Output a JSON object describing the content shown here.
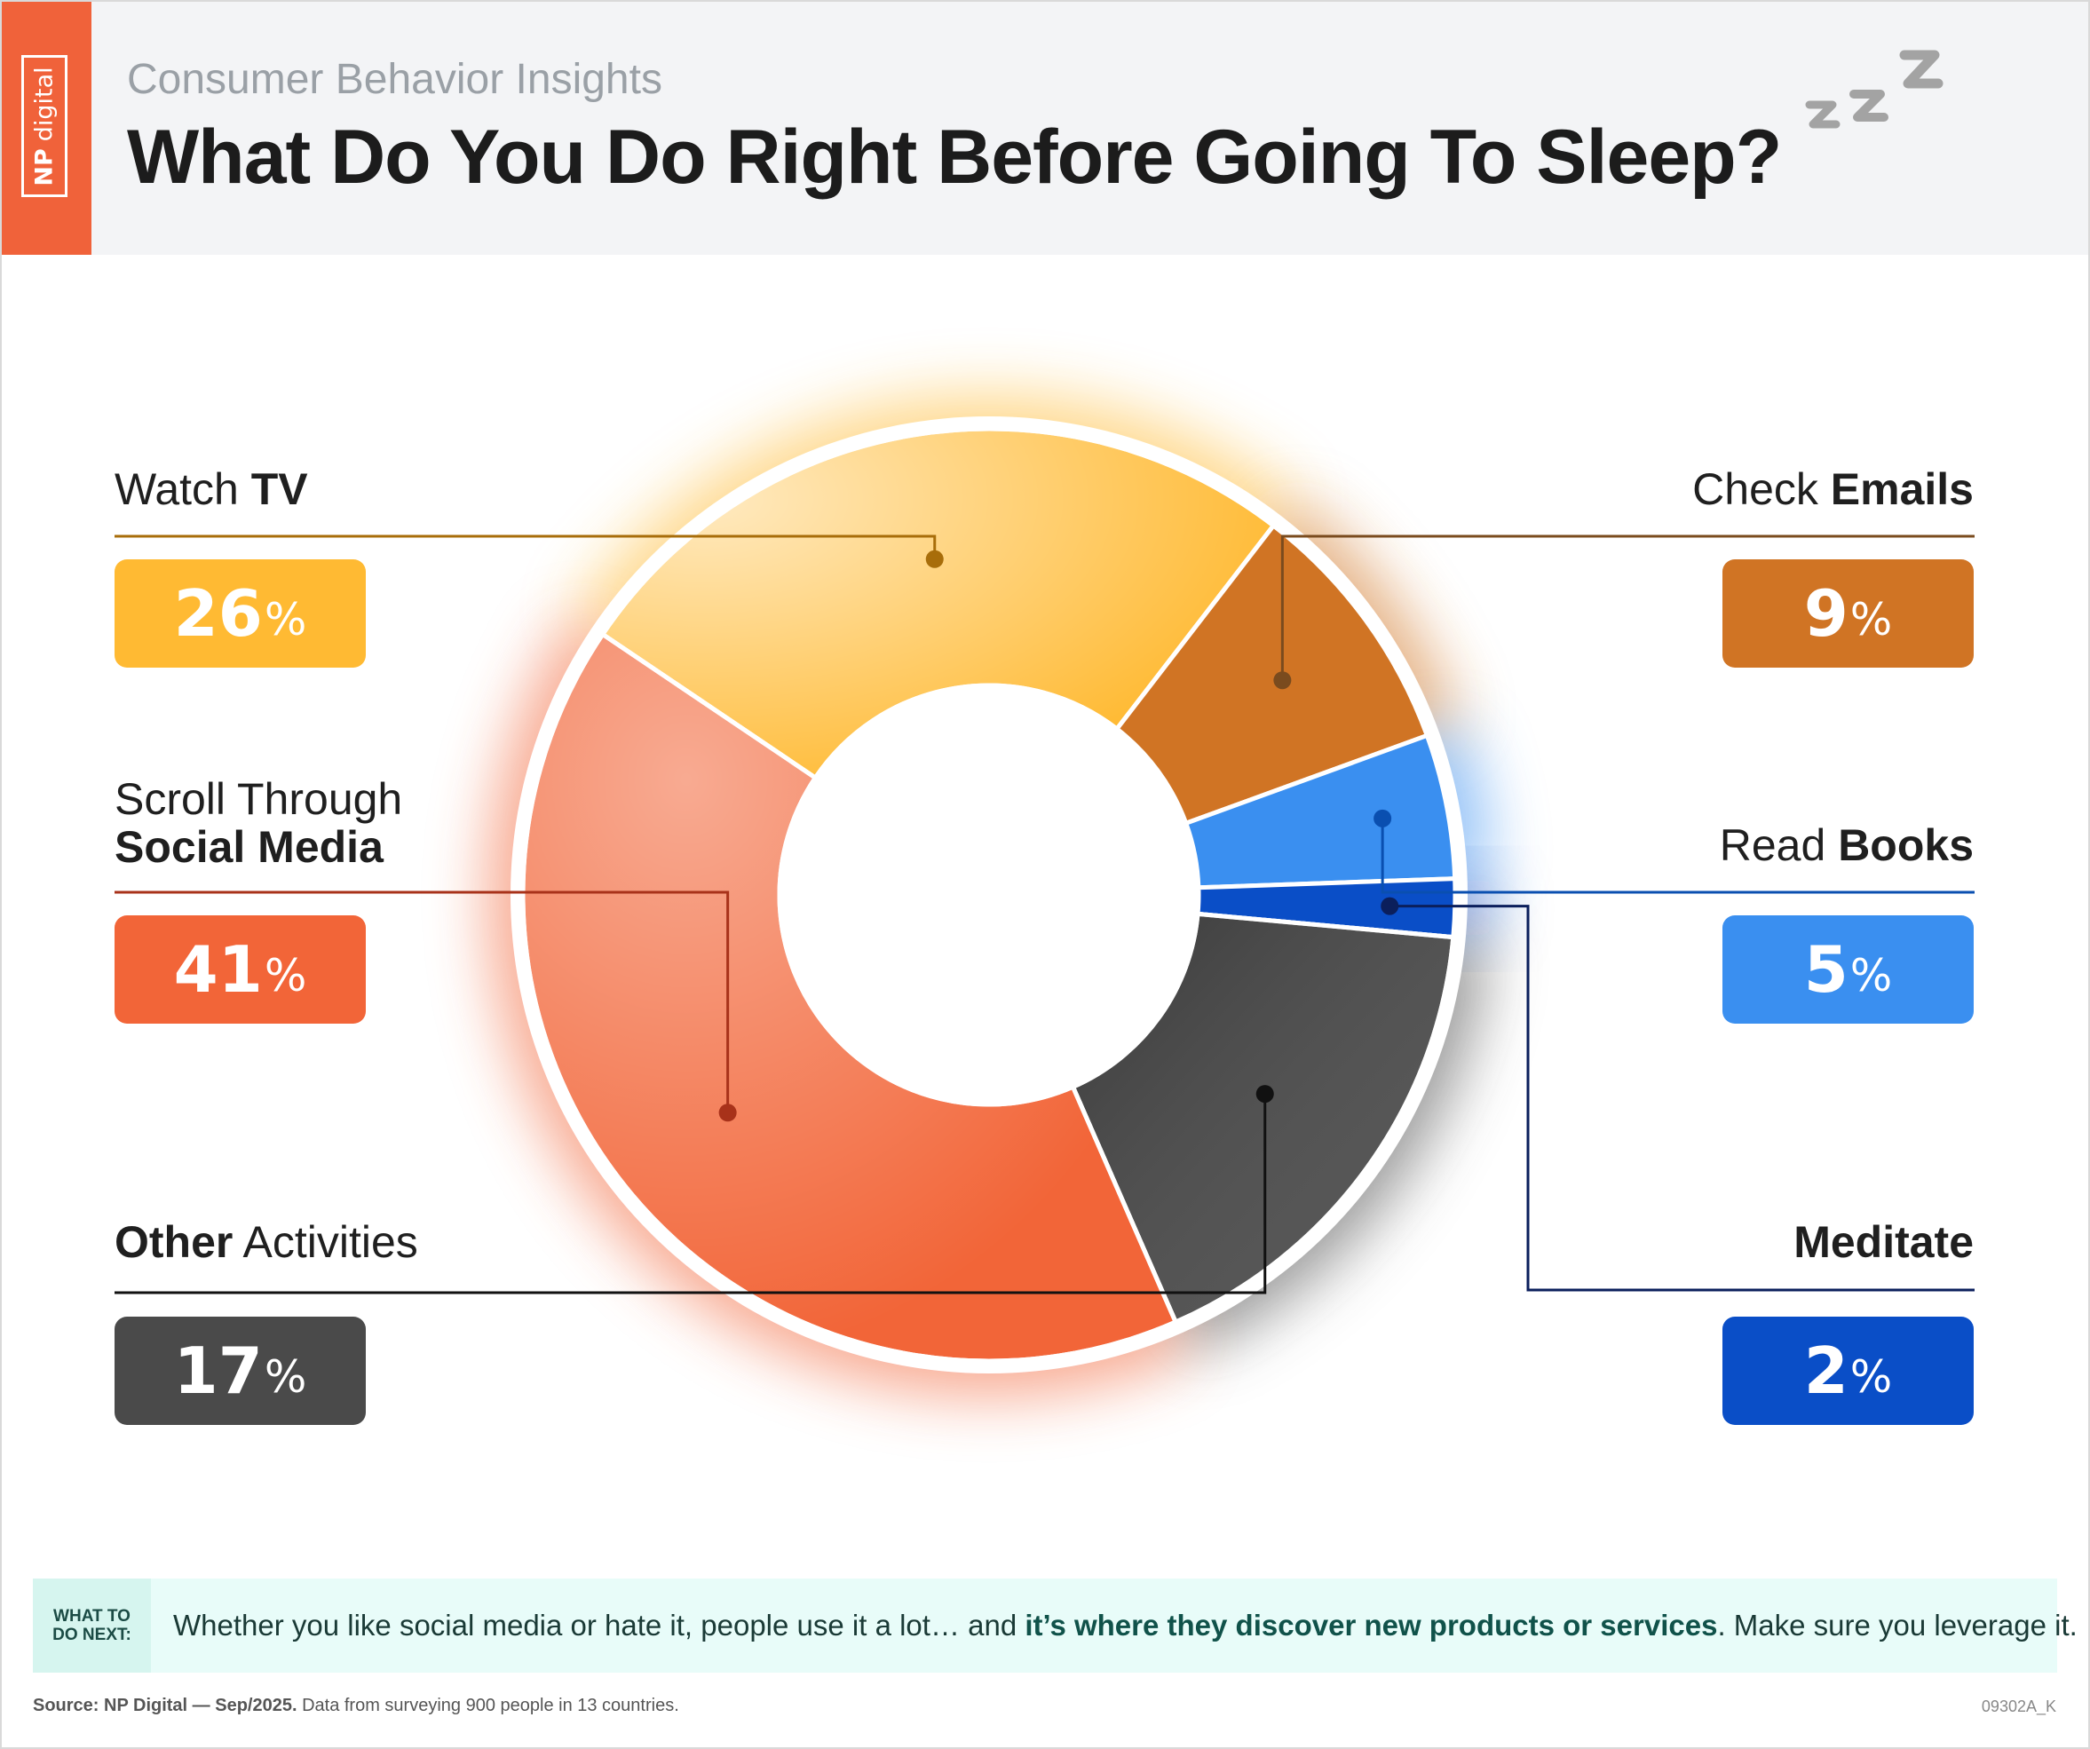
{
  "header": {
    "logo_np": "NP",
    "logo_digital": "digital",
    "subtitle": "Consumer Behavior Insights",
    "title": "What Do You Do Right Before Going To Sleep?"
  },
  "labels": {
    "watch_tv": {
      "plain": "Watch ",
      "bold": "TV"
    },
    "social_media": {
      "line1": "Scroll Through",
      "bold": "Social Media"
    },
    "other": {
      "bold": "Other",
      "plain": " Activities"
    },
    "check_emails": {
      "plain": "Check ",
      "bold": "Emails"
    },
    "read_books": {
      "plain": "Read ",
      "bold": "Books"
    },
    "meditate": {
      "bold": "Meditate"
    }
  },
  "chart_data": {
    "type": "pie",
    "variant": "donut",
    "title": "What Do You Do Right Before Going To Sleep?",
    "unit": "%",
    "slices": [
      {
        "label": "Watch TV",
        "value": 26,
        "display": "26",
        "color": "#ffba33"
      },
      {
        "label": "Check Emails",
        "value": 9,
        "display": "9",
        "color": "#d07424"
      },
      {
        "label": "Read Books",
        "value": 5,
        "display": "5",
        "color": "#3a8ff0"
      },
      {
        "label": "Meditate",
        "value": 2,
        "display": "2",
        "color": "#0a4ec7"
      },
      {
        "label": "Other Activities",
        "value": 17,
        "display": "17",
        "color": "#4a4a4a"
      },
      {
        "label": "Scroll Through Social Media",
        "value": 41,
        "display": "41",
        "color": "#f26538"
      }
    ]
  },
  "what_next": {
    "tag_line1": "WHAT TO",
    "tag_line2": "DO NEXT:",
    "text_before": "Whether you like social media or hate it, people use it a lot… and ",
    "text_bold": "it’s where they discover new products or services",
    "text_after": ". Make sure you leverage it."
  },
  "footer": {
    "source_bold": "Source: NP Digital — Sep/2025.",
    "source_text": " Data from surveying 900 people in 13 countries.",
    "code": "09302A_K"
  }
}
